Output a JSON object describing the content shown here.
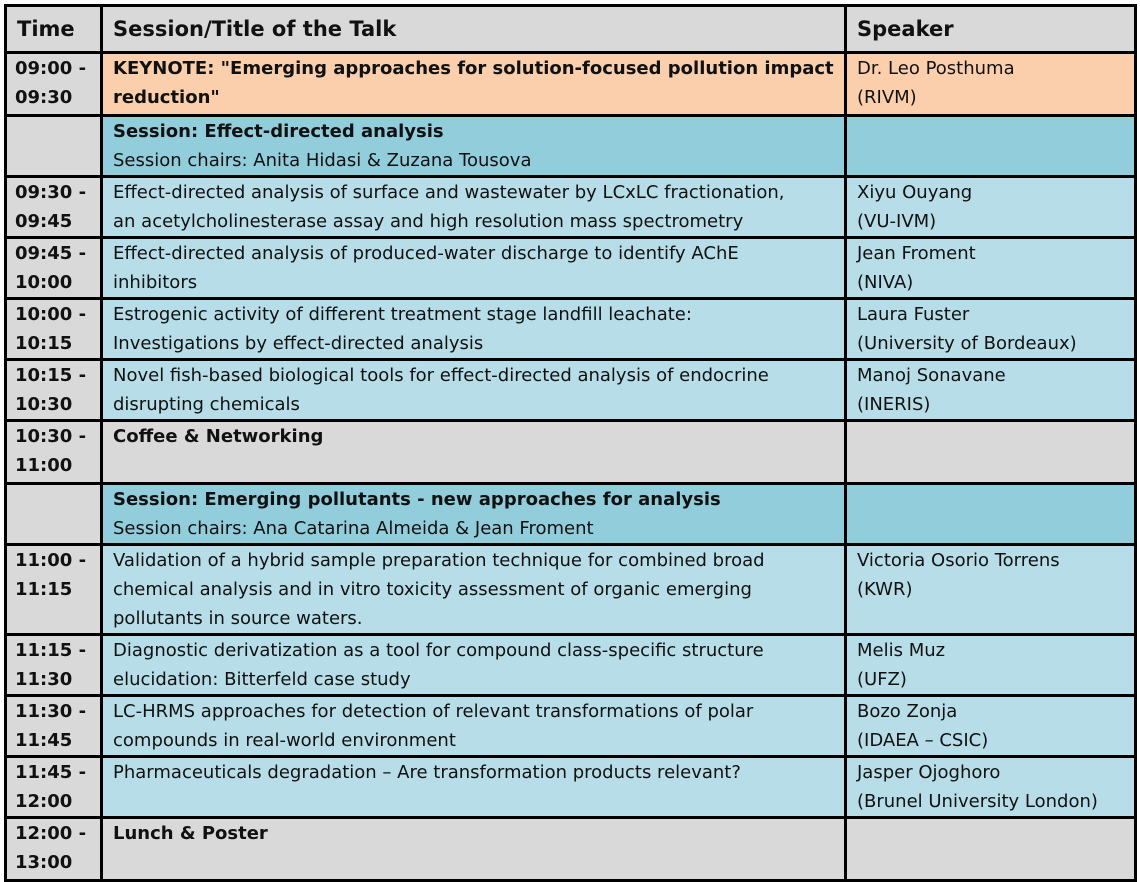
{
  "header": {
    "time": "Time",
    "title": "Session/Title of the Talk",
    "speaker": "Speaker"
  },
  "rows": [
    {
      "type": "keynote",
      "time": [
        "09:00 -",
        "09:30"
      ],
      "title": [
        "KEYNOTE: \"Emerging approaches for solution-focused pollution impact",
        "reduction\""
      ],
      "speaker": [
        "Dr. Leo Posthuma",
        "(RIVM)"
      ]
    },
    {
      "type": "session",
      "heading": "Session: Effect-directed analysis",
      "chairs": "Session chairs: Anita Hidasi & Zuzana Tousova"
    },
    {
      "type": "talk",
      "time": [
        "09:30 -",
        "09:45"
      ],
      "title": [
        "Effect-directed analysis of surface and wastewater by LCxLC fractionation,",
        "an acetylcholinesterase assay and high resolution mass spectrometry"
      ],
      "speaker": [
        "Xiyu Ouyang",
        "(VU-IVM)"
      ]
    },
    {
      "type": "talk",
      "time": [
        "09:45 -",
        "10:00"
      ],
      "title": [
        "Effect-directed analysis of produced-water discharge to identify AChE",
        "inhibitors"
      ],
      "speaker": [
        "Jean Froment",
        "(NIVA)"
      ]
    },
    {
      "type": "talk",
      "time": [
        "10:00 -",
        "10:15"
      ],
      "title": [
        "Estrogenic activity of different treatment stage landfill leachate:",
        "Investigations by effect-directed analysis"
      ],
      "speaker": [
        "Laura Fuster",
        "(University of Bordeaux)"
      ]
    },
    {
      "type": "talk",
      "time": [
        "10:15 -",
        "10:30"
      ],
      "title": [
        "Novel fish-based biological tools for effect-directed analysis of endocrine",
        "disrupting chemicals"
      ],
      "speaker": [
        "Manoj Sonavane",
        "(INERIS)"
      ]
    },
    {
      "type": "break",
      "time": [
        "10:30 -",
        "11:00"
      ],
      "title": "Coffee & Networking"
    },
    {
      "type": "session",
      "heading": "Session: Emerging pollutants - new approaches for analysis",
      "chairs": "Session chairs: Ana Catarina Almeida & Jean Froment"
    },
    {
      "type": "talk",
      "time": [
        "11:00 -",
        "11:15"
      ],
      "title": [
        "Validation of a hybrid sample preparation technique for combined broad",
        "chemical analysis and in vitro toxicity assessment of organic emerging",
        "pollutants in source waters."
      ],
      "speaker": [
        "Victoria Osorio Torrens",
        "(KWR)"
      ]
    },
    {
      "type": "talk",
      "time": [
        "11:15 -",
        "11:30"
      ],
      "title": [
        "Diagnostic derivatization as a tool for compound class-specific structure",
        "elucidation: Bitterfeld case study"
      ],
      "speaker": [
        "Melis Muz",
        "(UFZ)"
      ]
    },
    {
      "type": "talk",
      "time": [
        "11:30 -",
        "11:45"
      ],
      "title": [
        "LC-HRMS approaches for detection of relevant transformations of polar",
        "compounds in real-world environment"
      ],
      "speaker": [
        "Bozo Zonja",
        "(IDAEA – CSIC)"
      ]
    },
    {
      "type": "talk",
      "time": [
        "11:45 -",
        "12:00"
      ],
      "title": [
        "Pharmaceuticals degradation – Are transformation products relevant?"
      ],
      "speaker": [
        "Jasper Ojoghoro",
        "(Brunel University London)"
      ]
    },
    {
      "type": "break",
      "time": [
        "12:00 -",
        "13:00"
      ],
      "title": "Lunch & Poster"
    }
  ]
}
